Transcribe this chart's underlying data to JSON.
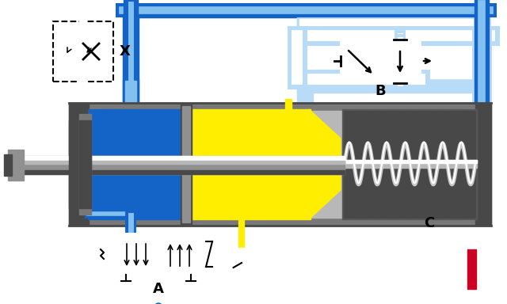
{
  "bg_color": "#ffffff",
  "blue_dark": "#1464c8",
  "blue_light": "#82c0f0",
  "blue_lighter": "#b8dcf8",
  "yellow": "#ffee00",
  "gray_outer": "#787878",
  "gray_mid": "#909090",
  "gray_light": "#b8b8b8",
  "gray_dark": "#484848",
  "gray_inner": "#c8c8c8",
  "gray_spring_bg": "#585858",
  "black": "#000000",
  "red_bar": "#cc0022",
  "white": "#ffffff",
  "label_A": "A",
  "label_B": "B",
  "label_C": "C",
  "label_X": "X"
}
